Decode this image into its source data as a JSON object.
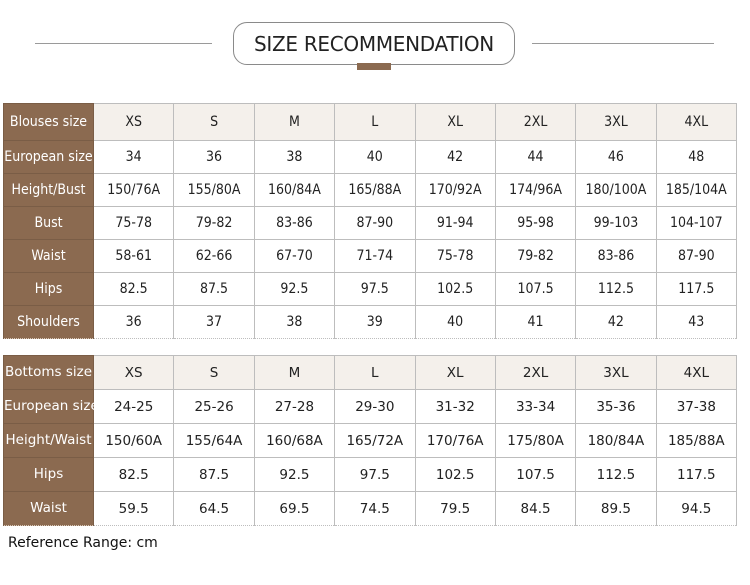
{
  "title": "SIZE RECOMMENDATION",
  "colors": {
    "accent": "#8b6a50",
    "header_bg": "#f4f0eb"
  },
  "blouses": {
    "rows": [
      {
        "label": "Blouses size",
        "values": [
          "XS",
          "S",
          "M",
          "L",
          "XL",
          "2XL",
          "3XL",
          "4XL"
        ]
      },
      {
        "label": "European size",
        "values": [
          "34",
          "36",
          "38",
          "40",
          "42",
          "44",
          "46",
          "48"
        ]
      },
      {
        "label": "Height/Bust",
        "values": [
          "150/76A",
          "155/80A",
          "160/84A",
          "165/88A",
          "170/92A",
          "174/96A",
          "180/100A",
          "185/104A"
        ]
      },
      {
        "label": "Bust",
        "values": [
          "75-78",
          "79-82",
          "83-86",
          "87-90",
          "91-94",
          "95-98",
          "99-103",
          "104-107"
        ]
      },
      {
        "label": "Waist",
        "values": [
          "58-61",
          "62-66",
          "67-70",
          "71-74",
          "75-78",
          "79-82",
          "83-86",
          "87-90"
        ]
      },
      {
        "label": "Hips",
        "values": [
          "82.5",
          "87.5",
          "92.5",
          "97.5",
          "102.5",
          "107.5",
          "112.5",
          "117.5"
        ]
      },
      {
        "label": "Shoulders",
        "values": [
          "36",
          "37",
          "38",
          "39",
          "40",
          "41",
          "42",
          "43"
        ]
      }
    ]
  },
  "bottoms": {
    "rows": [
      {
        "label": "Bottoms size",
        "values": [
          "XS",
          "S",
          "M",
          "L",
          "XL",
          "2XL",
          "3XL",
          "4XL"
        ]
      },
      {
        "label": "European size",
        "values": [
          "24-25",
          "25-26",
          "27-28",
          "29-30",
          "31-32",
          "33-34",
          "35-36",
          "37-38"
        ]
      },
      {
        "label": "Height/Waist",
        "values": [
          "150/60A",
          "155/64A",
          "160/68A",
          "165/72A",
          "170/76A",
          "175/80A",
          "180/84A",
          "185/88A"
        ]
      },
      {
        "label": "Hips",
        "values": [
          "82.5",
          "87.5",
          "92.5",
          "97.5",
          "102.5",
          "107.5",
          "112.5",
          "117.5"
        ]
      },
      {
        "label": "Waist",
        "values": [
          "59.5",
          "64.5",
          "69.5",
          "74.5",
          "79.5",
          "84.5",
          "89.5",
          "94.5"
        ]
      }
    ]
  },
  "footnote": "Reference Range: cm"
}
